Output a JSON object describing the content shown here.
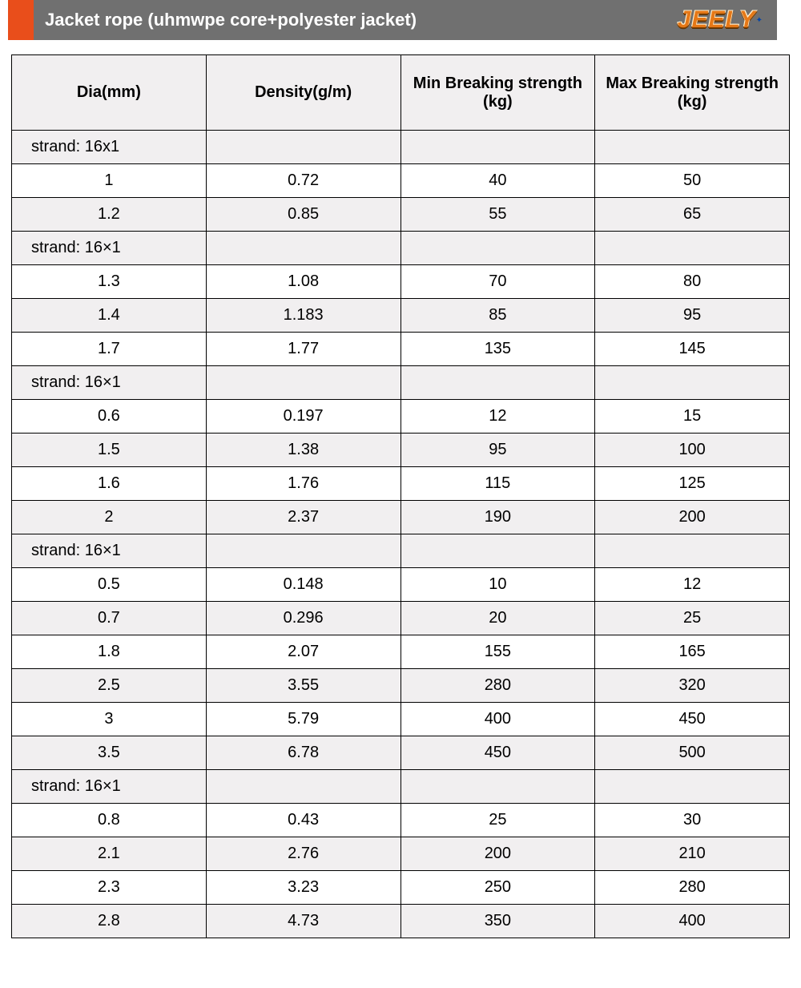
{
  "header": {
    "title": "Jacket rope (uhmwpe core+polyester jacket)",
    "logo_text": "JEELY",
    "accent_color": "#e94e1b",
    "bar_color": "#707070",
    "logo_color": "#e67817"
  },
  "table": {
    "type": "table",
    "columns": [
      "Dia(mm)",
      "Density(g/m)",
      "Min Breaking strength  (kg)",
      "Max Breaking strength  (kg)"
    ],
    "border_color": "#000000",
    "header_bg": "#f1eff0",
    "row_bg": "#ffffff",
    "alt_row_bg": "#f1eff0",
    "font_size": 20,
    "rows": [
      {
        "kind": "strand",
        "label": "strand:  16x1"
      },
      {
        "kind": "data",
        "cells": [
          "1",
          "0.72",
          "40",
          "50"
        ],
        "zebra": false
      },
      {
        "kind": "data",
        "cells": [
          "1.2",
          "0.85",
          "55",
          "65"
        ],
        "zebra": true
      },
      {
        "kind": "strand",
        "label": "strand:  16×1"
      },
      {
        "kind": "data",
        "cells": [
          "1.3",
          "1.08",
          "70",
          "80"
        ],
        "zebra": false
      },
      {
        "kind": "data",
        "cells": [
          "1.4",
          "1.183",
          "85",
          "95"
        ],
        "zebra": true
      },
      {
        "kind": "data",
        "cells": [
          "1.7",
          "1.77",
          "135",
          "145"
        ],
        "zebra": false
      },
      {
        "kind": "strand",
        "label": "strand:  16×1"
      },
      {
        "kind": "data",
        "cells": [
          "0.6",
          "0.197",
          "12",
          "15"
        ],
        "zebra": false
      },
      {
        "kind": "data",
        "cells": [
          "1.5",
          "1.38",
          "95",
          "100"
        ],
        "zebra": true
      },
      {
        "kind": "data",
        "cells": [
          "1.6",
          "1.76",
          "115",
          "125"
        ],
        "zebra": false
      },
      {
        "kind": "data",
        "cells": [
          "2",
          "2.37",
          "190",
          "200"
        ],
        "zebra": true
      },
      {
        "kind": "strand",
        "label": "strand:  16×1"
      },
      {
        "kind": "data",
        "cells": [
          "0.5",
          "0.148",
          "10",
          "12"
        ],
        "zebra": false
      },
      {
        "kind": "data",
        "cells": [
          "0.7",
          "0.296",
          "20",
          "25"
        ],
        "zebra": true
      },
      {
        "kind": "data",
        "cells": [
          "1.8",
          "2.07",
          "155",
          "165"
        ],
        "zebra": false
      },
      {
        "kind": "data",
        "cells": [
          "2.5",
          "3.55",
          "280",
          "320"
        ],
        "zebra": true
      },
      {
        "kind": "data",
        "cells": [
          "3",
          "5.79",
          "400",
          "450"
        ],
        "zebra": false
      },
      {
        "kind": "data",
        "cells": [
          "3.5",
          "6.78",
          "450",
          "500"
        ],
        "zebra": true
      },
      {
        "kind": "strand",
        "label": "strand:  16×1"
      },
      {
        "kind": "data",
        "cells": [
          "0.8",
          "0.43",
          "25",
          "30"
        ],
        "zebra": false
      },
      {
        "kind": "data",
        "cells": [
          "2.1",
          "2.76",
          "200",
          "210"
        ],
        "zebra": true
      },
      {
        "kind": "data",
        "cells": [
          "2.3",
          "3.23",
          "250",
          "280"
        ],
        "zebra": false
      },
      {
        "kind": "data",
        "cells": [
          "2.8",
          "4.73",
          "350",
          "400"
        ],
        "zebra": true
      }
    ]
  }
}
